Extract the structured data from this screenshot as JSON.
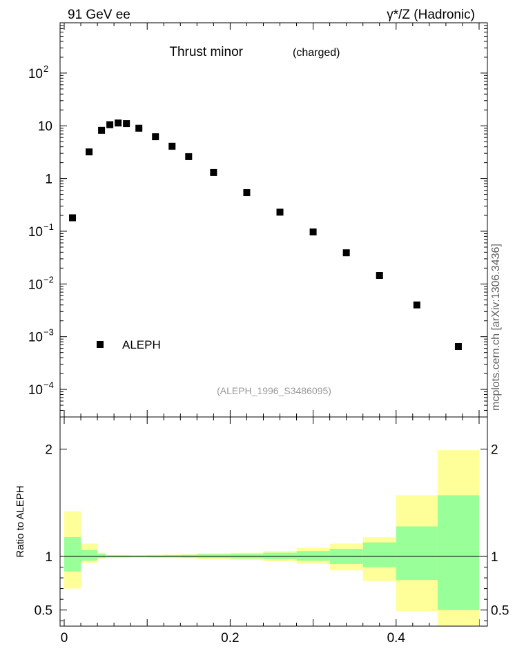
{
  "header": {
    "left": "91 GeV ee",
    "right": "γ*/Z (Hadronic)"
  },
  "side_label": "mcplots.cern.ch [arXiv:1306.3436]",
  "chart_data": [
    {
      "type": "scatter",
      "title": "Thrust minor",
      "subtitle": "(charged)",
      "annotation": "(ALEPH_1996_S3486095)",
      "yscale": "log",
      "xlim": [
        -0.005,
        0.51
      ],
      "ylim": [
        3e-05,
        900
      ],
      "y_ticks": [
        {
          "value": 0.0001,
          "base": "10",
          "exp": "−4"
        },
        {
          "value": 0.001,
          "base": "10",
          "exp": "−3"
        },
        {
          "value": 0.01,
          "base": "10",
          "exp": "−2"
        },
        {
          "value": 0.1,
          "base": "10",
          "exp": "−1"
        },
        {
          "value": 1,
          "base": "1",
          "exp": ""
        },
        {
          "value": 10,
          "base": "10",
          "exp": ""
        },
        {
          "value": 100,
          "base": "10",
          "exp": "2"
        }
      ],
      "legend": {
        "label": "ALEPH",
        "position": "lower-left"
      },
      "series": [
        {
          "name": "ALEPH",
          "color": "#000000",
          "x": [
            0.01,
            0.03,
            0.045,
            0.055,
            0.065,
            0.075,
            0.09,
            0.11,
            0.13,
            0.15,
            0.18,
            0.22,
            0.26,
            0.3,
            0.34,
            0.38,
            0.425,
            0.475
          ],
          "y": [
            0.18,
            3.2,
            8.2,
            10.5,
            11.3,
            11.0,
            9.0,
            6.2,
            4.1,
            2.6,
            1.3,
            0.54,
            0.23,
            0.097,
            0.039,
            0.0145,
            0.004,
            0.00065
          ]
        }
      ]
    },
    {
      "type": "area",
      "ylabel": "Ratio to ALEPH",
      "xlim": [
        -0.005,
        0.51
      ],
      "ylim": [
        0.35,
        2.3
      ],
      "x_ticks": [
        "0",
        "0.2",
        "0.4"
      ],
      "y_ticks": [
        "0.5",
        "1",
        "2"
      ],
      "reference_line": 1,
      "colors": {
        "inner": "#99ff99",
        "outer": "#ffff99"
      },
      "bins": [
        {
          "lo": 0.0,
          "hi": 0.02,
          "inner": [
            0.86,
            1.18
          ],
          "outer": [
            0.7,
            1.42
          ]
        },
        {
          "lo": 0.02,
          "hi": 0.04,
          "inner": [
            0.96,
            1.06
          ],
          "outer": [
            0.94,
            1.12
          ]
        },
        {
          "lo": 0.04,
          "hi": 0.05,
          "inner": [
            0.985,
            1.025
          ],
          "outer": [
            0.98,
            1.035
          ]
        },
        {
          "lo": 0.05,
          "hi": 0.08,
          "inner": [
            0.99,
            1.01
          ],
          "outer": [
            0.985,
            1.015
          ]
        },
        {
          "lo": 0.08,
          "hi": 0.1,
          "inner": [
            0.992,
            1.008
          ],
          "outer": [
            0.988,
            1.012
          ]
        },
        {
          "lo": 0.1,
          "hi": 0.12,
          "inner": [
            0.99,
            1.01
          ],
          "outer": [
            0.985,
            1.015
          ]
        },
        {
          "lo": 0.12,
          "hi": 0.14,
          "inner": [
            0.99,
            1.012
          ],
          "outer": [
            0.985,
            1.018
          ]
        },
        {
          "lo": 0.14,
          "hi": 0.16,
          "inner": [
            0.988,
            1.015
          ],
          "outer": [
            0.982,
            1.02
          ]
        },
        {
          "lo": 0.16,
          "hi": 0.2,
          "inner": [
            0.985,
            1.02
          ],
          "outer": [
            0.975,
            1.03
          ]
        },
        {
          "lo": 0.2,
          "hi": 0.24,
          "inner": [
            0.98,
            1.025
          ],
          "outer": [
            0.97,
            1.035
          ]
        },
        {
          "lo": 0.24,
          "hi": 0.28,
          "inner": [
            0.975,
            1.035
          ],
          "outer": [
            0.955,
            1.05
          ]
        },
        {
          "lo": 0.28,
          "hi": 0.32,
          "inner": [
            0.96,
            1.05
          ],
          "outer": [
            0.93,
            1.08
          ]
        },
        {
          "lo": 0.32,
          "hi": 0.36,
          "inner": [
            0.93,
            1.07
          ],
          "outer": [
            0.87,
            1.12
          ]
        },
        {
          "lo": 0.36,
          "hi": 0.4,
          "inner": [
            0.9,
            1.13
          ],
          "outer": [
            0.77,
            1.18
          ]
        },
        {
          "lo": 0.4,
          "hi": 0.45,
          "inner": [
            0.78,
            1.28
          ],
          "outer": [
            0.49,
            1.57
          ]
        },
        {
          "lo": 0.45,
          "hi": 0.5,
          "inner": [
            0.5,
            1.57
          ],
          "outer": [
            0.33,
            1.99
          ]
        }
      ]
    }
  ]
}
